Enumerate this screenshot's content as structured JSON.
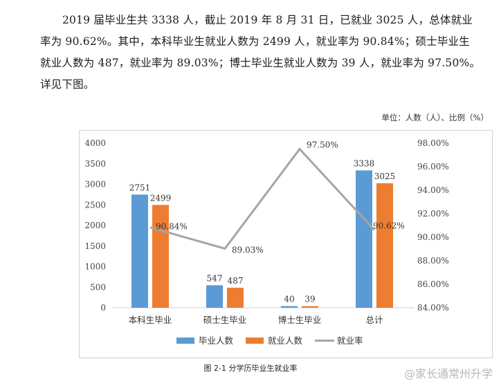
{
  "paragraph": {
    "line1": "2019 届毕业生共 3338 人，截止 2019 年 8 月 31 日，已就业 3025 人，总体就业",
    "line2": "率为 90.62%。其中，本科毕业生就业人数为 2499 人，就业率为 90.84%；硕士毕业生",
    "line3": "就业人数为 487，就业率为 89.03%；博士毕业生就业人数为 39 人，就业率为 97.50%。",
    "line4": "详见下图。"
  },
  "unit_label": "单位：人数（人）、比例（%）",
  "caption": "图 2-1 分学历毕业生就业率",
  "watermark": "@家长通常州升学",
  "colors": {
    "graduates": "#5b9bd5",
    "employed": "#ed7d31",
    "rate": "#a5a5a5"
  },
  "chart_data": {
    "type": "bar",
    "categories": [
      "本科生毕业",
      "硕士生毕业",
      "博士生毕业",
      "总计"
    ],
    "series": [
      {
        "name": "毕业人数",
        "type": "bar",
        "values": [
          2751,
          547,
          40,
          3338
        ]
      },
      {
        "name": "就业人数",
        "type": "bar",
        "values": [
          2499,
          487,
          39,
          3025
        ]
      },
      {
        "name": "就业率",
        "type": "line",
        "axis": "right",
        "values": [
          90.84,
          89.03,
          97.5,
          90.62
        ],
        "labels": [
          "90.84%",
          "89.03%",
          "97.50%",
          "90.62%"
        ]
      }
    ],
    "ylim": [
      0,
      4000
    ],
    "yticks": [
      "0",
      "500",
      "1000",
      "1500",
      "2000",
      "2500",
      "3000",
      "3500",
      "4000"
    ],
    "y2lim": [
      84,
      98
    ],
    "y2ticks": [
      "84.00%",
      "86.00%",
      "88.00%",
      "90.00%",
      "92.00%",
      "94.00%",
      "96.00%",
      "98.00%"
    ],
    "legend": "bottom",
    "grid": false
  }
}
